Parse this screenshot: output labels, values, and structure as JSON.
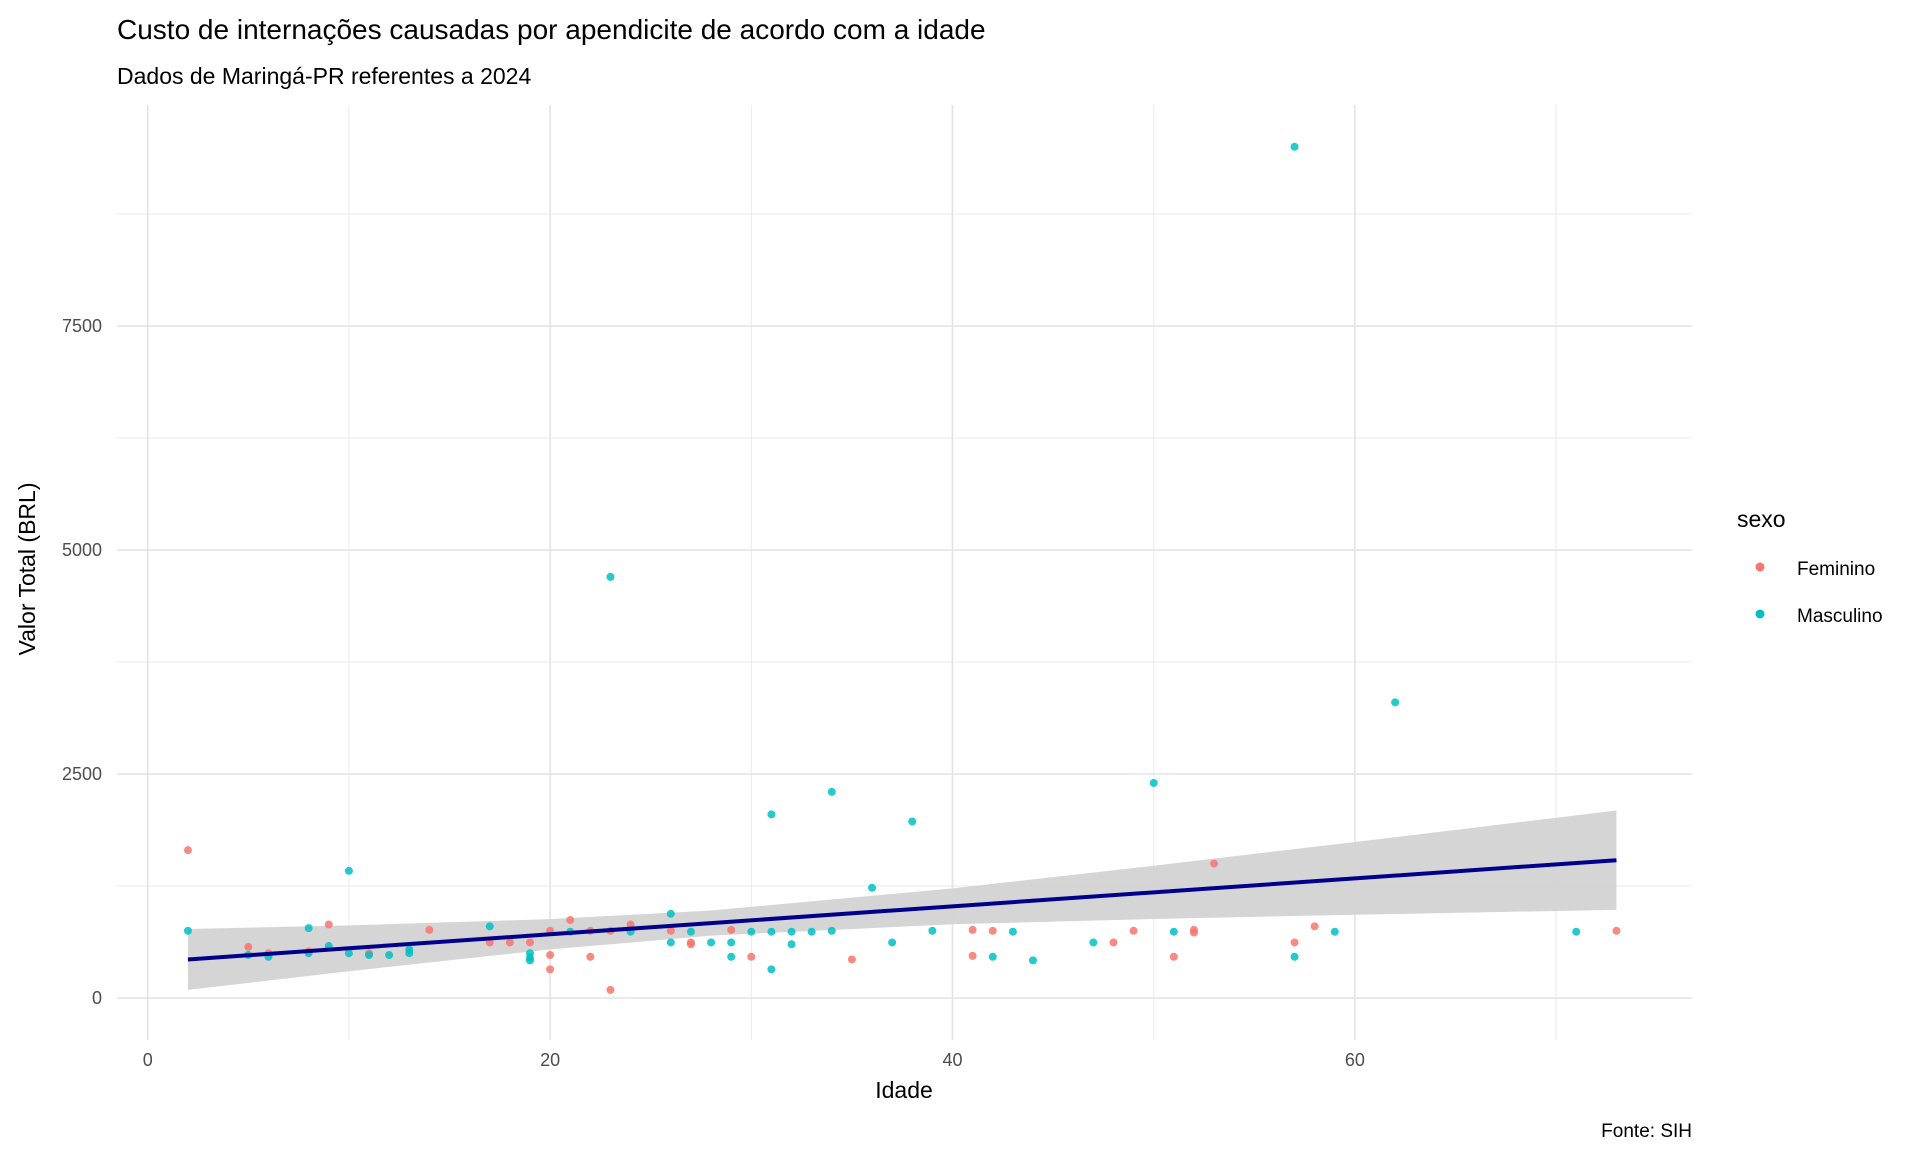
{
  "chart_data": {
    "type": "scatter",
    "title": "Custo de internações causadas por apendicite de acordo com a idade",
    "subtitle": "Dados de Maringá-PR referentes a 2024",
    "xlabel": "Idade",
    "ylabel": "Valor Total (BRL)",
    "caption": "Fonte: SIH",
    "xlim": [
      -2,
      76
    ],
    "ylim": [
      -600,
      9850
    ],
    "x_ticks": [
      0,
      20,
      40,
      60
    ],
    "x_tick_labels": [
      "0",
      "20",
      "40",
      "60"
    ],
    "y_ticks": [
      0,
      2500,
      5000,
      7500
    ],
    "y_tick_labels": [
      "0",
      "2500",
      "5000",
      "7500"
    ],
    "x_minor": [
      10,
      30,
      50,
      70
    ],
    "y_minor": [
      1250,
      3750,
      6250,
      8750
    ],
    "grid": true,
    "legend": {
      "title": "sexo",
      "placement": "right",
      "entries": [
        "Feminino",
        "Masculino"
      ]
    },
    "colors": {
      "Feminino": "#F8766D",
      "Masculino": "#00BFC4",
      "trend": "#00008B",
      "band": "#D3D3D3"
    },
    "series": [
      {
        "name": "Feminino",
        "points": [
          [
            2,
            1650
          ],
          [
            5,
            570
          ],
          [
            6,
            500
          ],
          [
            8,
            520
          ],
          [
            9,
            820
          ],
          [
            11,
            500
          ],
          [
            14,
            760
          ],
          [
            17,
            620
          ],
          [
            18,
            620
          ],
          [
            19,
            620
          ],
          [
            20,
            750
          ],
          [
            20,
            480
          ],
          [
            20,
            320
          ],
          [
            21,
            870
          ],
          [
            22,
            750
          ],
          [
            22,
            460
          ],
          [
            23,
            750
          ],
          [
            23,
            90
          ],
          [
            24,
            820
          ],
          [
            26,
            750
          ],
          [
            27,
            620
          ],
          [
            27,
            600
          ],
          [
            29,
            760
          ],
          [
            30,
            460
          ],
          [
            35,
            430
          ],
          [
            41,
            760
          ],
          [
            41,
            470
          ],
          [
            42,
            750
          ],
          [
            48,
            620
          ],
          [
            49,
            750
          ],
          [
            51,
            460
          ],
          [
            52,
            760
          ],
          [
            52,
            730
          ],
          [
            53,
            1500
          ],
          [
            57,
            620
          ],
          [
            58,
            800
          ],
          [
            73,
            750
          ]
        ]
      },
      {
        "name": "Masculino",
        "points": [
          [
            2,
            750
          ],
          [
            5,
            480
          ],
          [
            6,
            460
          ],
          [
            8,
            780
          ],
          [
            8,
            500
          ],
          [
            9,
            580
          ],
          [
            10,
            1420
          ],
          [
            10,
            500
          ],
          [
            11,
            480
          ],
          [
            12,
            480
          ],
          [
            13,
            500
          ],
          [
            13,
            540
          ],
          [
            17,
            800
          ],
          [
            19,
            500
          ],
          [
            19,
            450
          ],
          [
            19,
            420
          ],
          [
            21,
            740
          ],
          [
            23,
            4700
          ],
          [
            24,
            740
          ],
          [
            26,
            940
          ],
          [
            26,
            620
          ],
          [
            27,
            740
          ],
          [
            28,
            620
          ],
          [
            29,
            620
          ],
          [
            29,
            460
          ],
          [
            30,
            740
          ],
          [
            31,
            2050
          ],
          [
            31,
            740
          ],
          [
            31,
            320
          ],
          [
            32,
            740
          ],
          [
            32,
            600
          ],
          [
            33,
            740
          ],
          [
            34,
            2300
          ],
          [
            34,
            750
          ],
          [
            36,
            1230
          ],
          [
            37,
            620
          ],
          [
            38,
            1970
          ],
          [
            39,
            750
          ],
          [
            42,
            460
          ],
          [
            43,
            740
          ],
          [
            44,
            420
          ],
          [
            47,
            620
          ],
          [
            50,
            2400
          ],
          [
            51,
            740
          ],
          [
            57,
            9500
          ],
          [
            57,
            460
          ],
          [
            59,
            740
          ],
          [
            62,
            3300
          ],
          [
            71,
            740
          ]
        ]
      }
    ],
    "trend": {
      "method": "lm",
      "x": [
        2,
        10,
        20,
        28,
        40,
        50,
        60,
        73
      ],
      "fit": [
        430,
        555,
        711,
        836,
        1023,
        1179,
        1335,
        1538
      ],
      "lower": [
        90,
        299,
        542,
        696,
        823,
        882,
        929,
        984
      ],
      "upper": [
        770,
        811,
        880,
        976,
        1223,
        1476,
        1741,
        2092
      ]
    }
  }
}
